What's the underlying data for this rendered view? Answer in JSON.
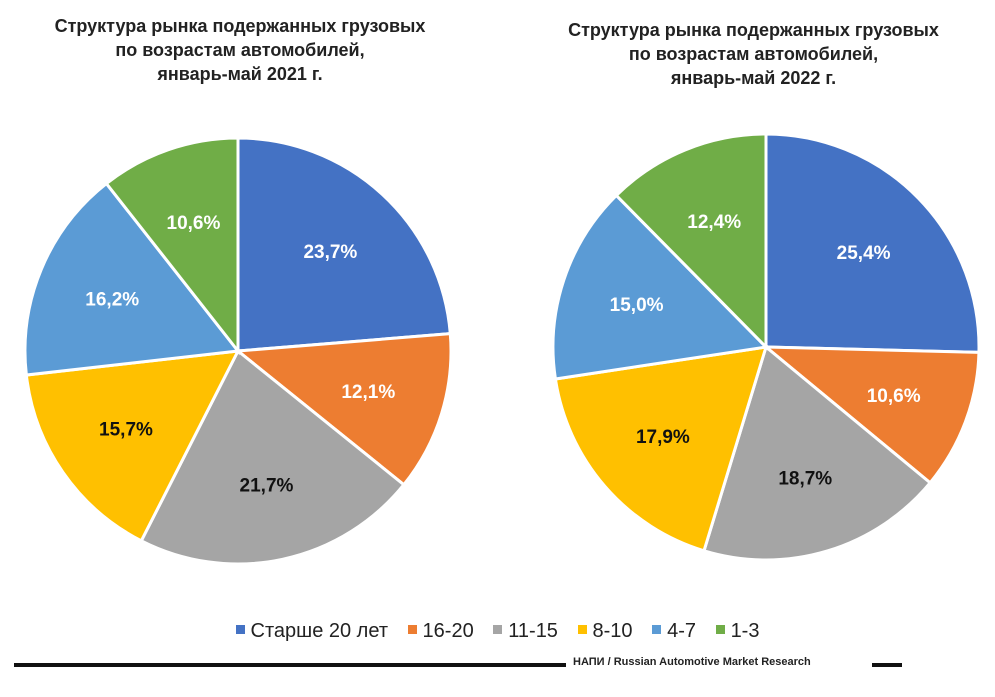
{
  "chart_data": [
    {
      "type": "pie",
      "title": "Структура рынка подержанных грузовых\nпо возрастам  автомобилей,\nянварь-май 2021 г.",
      "categories": [
        "Старше 20 лет",
        "16-20",
        "11-15",
        "8-10",
        "4-7",
        "1-3"
      ],
      "values": [
        23.7,
        12.1,
        21.7,
        15.7,
        16.2,
        10.6
      ],
      "labels": [
        "23,7%",
        "12,1%",
        "21,7%",
        "15,7%",
        "16,2%",
        "10,6%"
      ]
    },
    {
      "type": "pie",
      "title": "Структура рынка подержанных грузовых\nпо возрастам  автомобилей,\nянварь-май 2022 г.",
      "categories": [
        "Старше 20 лет",
        "16-20",
        "11-15",
        "8-10",
        "4-7",
        "1-3"
      ],
      "values": [
        25.4,
        10.6,
        18.7,
        17.9,
        15.0,
        12.4
      ],
      "labels": [
        "25,4%",
        "10,6%",
        "18,7%",
        "17,9%",
        "15,0%",
        "12,4%"
      ]
    }
  ],
  "legend": [
    {
      "label": "Старше 20 лет",
      "color": "#4472c4"
    },
    {
      "label": "16-20",
      "color": "#ed7d31"
    },
    {
      "label": "11-15",
      "color": "#a5a5a5"
    },
    {
      "label": "8-10",
      "color": "#ffc000"
    },
    {
      "label": "4-7",
      "color": "#5b9bd5"
    },
    {
      "label": "1-3",
      "color": "#70ad47"
    }
  ],
  "label_colors": [
    "#ffffff",
    "#ffffff",
    "#111111",
    "#111111",
    "#ffffff",
    "#ffffff"
  ],
  "footer": {
    "source": "НАПИ / Russian Automotive Market Research"
  }
}
